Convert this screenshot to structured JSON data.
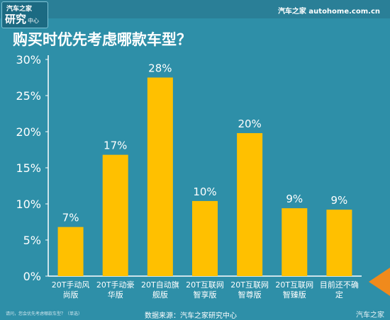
{
  "header": {
    "logo_top": "汽车之家",
    "logo_main": "研究",
    "logo_sub": "中心",
    "brand": "汽车之家 autohome.com.cn"
  },
  "colors": {
    "background": "#2e8fa8",
    "bar": "#ffc000",
    "text": "#ffffff"
  },
  "chart_data": {
    "type": "bar",
    "title": "购买时优先考虑哪款车型？",
    "categories": [
      [
        "20T手动风",
        "尚版"
      ],
      [
        "20T手动豪",
        "华版"
      ],
      [
        "20T自动旗",
        "舰版"
      ],
      [
        "20T互联网",
        "智享版"
      ],
      [
        "20T互联网",
        "智尊版"
      ],
      [
        "20T互联网",
        "智臻版"
      ],
      [
        "目前还不确",
        "定"
      ]
    ],
    "values": [
      7,
      17,
      28,
      10,
      20,
      9,
      9
    ],
    "plotted_values": [
      6.8,
      16.8,
      27.5,
      10.4,
      19.8,
      9.4,
      9.2
    ],
    "data_labels": [
      "7%",
      "17%",
      "28%",
      "10%",
      "20%",
      "9%",
      "9%"
    ],
    "yticks": [
      "0%",
      "5%",
      "10%",
      "15%",
      "20%",
      "25%",
      "30%"
    ],
    "ylim": [
      0,
      30
    ],
    "xlabel": "",
    "ylabel": "",
    "grid": false,
    "legend": "none"
  },
  "footer": {
    "footnote": "请问，您会优先考虑哪款车型？（单选）",
    "source": "数据来源：汽车之家研究中心",
    "watermark": "汽车之家"
  }
}
